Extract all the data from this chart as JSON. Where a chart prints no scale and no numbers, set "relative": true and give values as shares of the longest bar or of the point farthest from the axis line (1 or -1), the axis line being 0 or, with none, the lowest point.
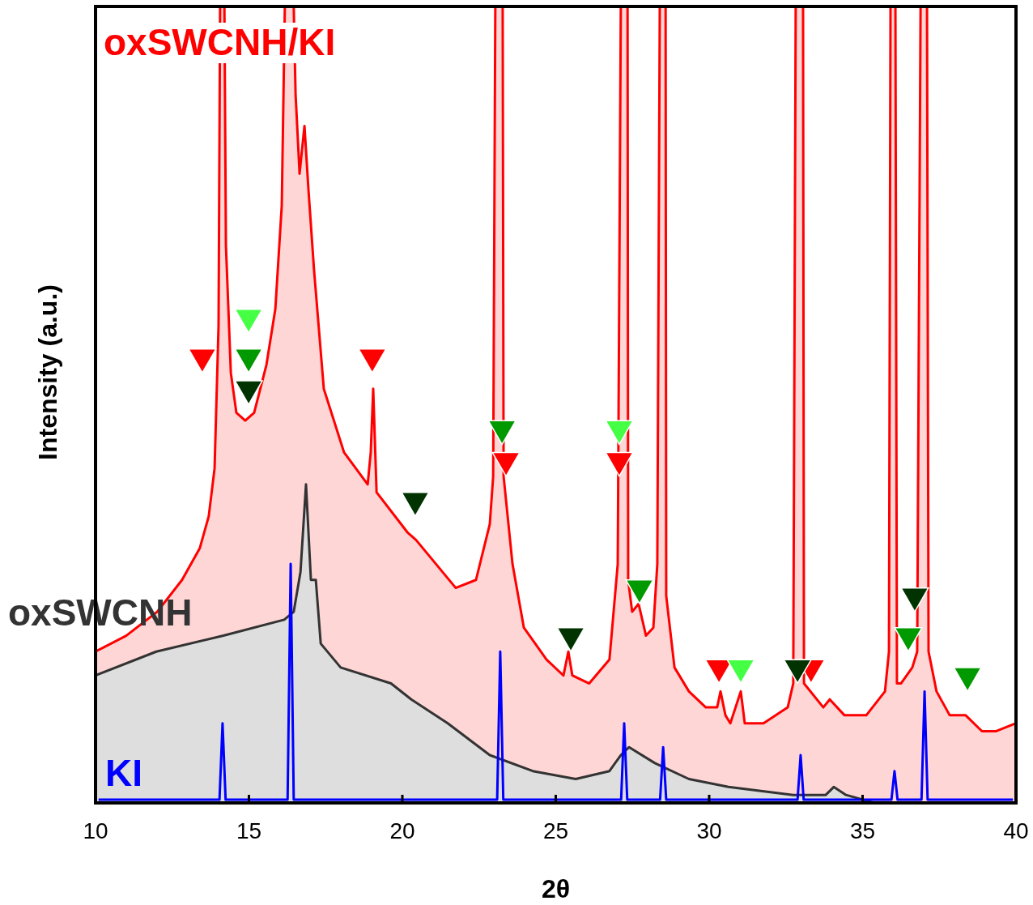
{
  "chart_data": {
    "type": "line",
    "xlabel": "2θ",
    "ylabel": "Intensity (a.u.)",
    "relative": true,
    "xlim": [
      10,
      40
    ],
    "xticks": [
      10,
      15,
      20,
      25,
      30,
      35,
      40
    ],
    "grid": false,
    "series": [
      {
        "name": "oxSWCNH/KI",
        "type": "area",
        "color": "#ff0000",
        "x": [
          10.0,
          11.0,
          12.01,
          12.82,
          13.4,
          13.69,
          13.88,
          14.01,
          14.06,
          14.2,
          14.25,
          14.41,
          14.59,
          14.88,
          15.17,
          15.57,
          15.86,
          16.07,
          16.17,
          16.46,
          16.52,
          16.65,
          16.81,
          16.94,
          17.12,
          17.44,
          18.1,
          18.87,
          18.97,
          19.05,
          19.16,
          20.16,
          20.45,
          21.74,
          22.4,
          22.85,
          22.96,
          23.03,
          23.27,
          23.3,
          23.59,
          23.96,
          24.7,
          25.25,
          25.41,
          25.54,
          26.09,
          26.75,
          27.02,
          27.12,
          27.34,
          27.36,
          27.49,
          27.7,
          27.94,
          28.18,
          28.31,
          28.39,
          28.58,
          28.6,
          28.87,
          29.34,
          29.89,
          30.26,
          30.37,
          30.53,
          30.69,
          31.03,
          31.16,
          31.77,
          32.56,
          32.74,
          32.82,
          33.06,
          33.09,
          33.72,
          33.93,
          34.41,
          35.12,
          35.73,
          35.86,
          35.91,
          36.07,
          36.12,
          36.25,
          36.62,
          36.78,
          36.89,
          37.1,
          37.15,
          37.41,
          37.84,
          38.36,
          38.89,
          39.34,
          40.0
        ],
        "values": [
          0.19,
          0.21,
          0.24,
          0.28,
          0.32,
          0.36,
          0.42,
          0.6,
          1,
          1,
          0.7,
          0.54,
          0.49,
          0.48,
          0.49,
          0.55,
          0.62,
          0.75,
          1,
          1,
          0.89,
          0.79,
          0.85,
          0.77,
          0.67,
          0.52,
          0.44,
          0.4,
          0.44,
          0.52,
          0.39,
          0.34,
          0.33,
          0.27,
          0.28,
          0.35,
          0.41,
          1,
          1,
          0.41,
          0.3,
          0.22,
          0.18,
          0.16,
          0.19,
          0.16,
          0.15,
          0.18,
          0.3,
          1,
          1,
          0.28,
          0.24,
          0.25,
          0.21,
          0.22,
          0.3,
          1,
          1,
          0.26,
          0.17,
          0.14,
          0.12,
          0.12,
          0.14,
          0.11,
          0.1,
          0.14,
          0.1,
          0.1,
          0.12,
          0.15,
          1,
          1,
          0.15,
          0.12,
          0.13,
          0.11,
          0.11,
          0.14,
          0.19,
          1,
          1,
          0.15,
          0.15,
          0.17,
          0.19,
          1,
          1,
          0.19,
          0.14,
          0.11,
          0.11,
          0.09,
          0.09,
          0.1
        ]
      },
      {
        "name": "oxSWCNH",
        "type": "area",
        "color": "#333333",
        "x": [
          10.0,
          11.98,
          14.17,
          16.15,
          16.46,
          16.68,
          16.86,
          17.02,
          17.18,
          17.34,
          17.99,
          19.63,
          20.29,
          21.48,
          22.85,
          24.25,
          25.65,
          26.75,
          27.12,
          27.39,
          28.23,
          29.34,
          30.63,
          32.74,
          33.8,
          34.06,
          34.46,
          35.38,
          40.0
        ],
        "values": [
          0.16,
          0.19,
          0.21,
          0.23,
          0.24,
          0.29,
          0.4,
          0.28,
          0.28,
          0.2,
          0.17,
          0.15,
          0.13,
          0.1,
          0.06,
          0.04,
          0.03,
          0.04,
          0.06,
          0.07,
          0.05,
          0.03,
          0.02,
          0.01,
          0.01,
          0.02,
          0.01,
          0.0,
          0.0
        ]
      },
      {
        "name": "KI",
        "type": "line",
        "color": "#0000ff",
        "x": [
          10.1,
          14.04,
          14.14,
          14.24,
          16.26,
          16.36,
          16.46,
          23.09,
          23.19,
          23.29,
          27.13,
          27.23,
          27.33,
          28.4,
          28.5,
          28.6,
          32.88,
          32.98,
          33.08,
          35.94,
          36.04,
          36.14,
          36.92,
          37.02,
          37.12,
          39.9
        ],
        "values": [
          0.004,
          0.004,
          0.1,
          0.004,
          0.004,
          0.3,
          0.004,
          0.004,
          0.19,
          0.004,
          0.004,
          0.1,
          0.004,
          0.004,
          0.07,
          0.004,
          0.004,
          0.06,
          0.004,
          0.004,
          0.04,
          0.004,
          0.004,
          0.14,
          0.004,
          0.004
        ]
      },
      {
        "type": "scatter",
        "marker": "triangle",
        "color": "#ff0000",
        "x": [
          13.48,
          19.02,
          23.38,
          27.07,
          30.32,
          33.32
        ],
        "values": [
          0.56,
          0.56,
          0.43,
          0.43,
          0.17,
          0.17
        ]
      },
      {
        "type": "scatter",
        "marker": "triangle",
        "color": "#44ff44",
        "x": [
          14.99,
          27.07,
          31.03
        ],
        "values": [
          0.61,
          0.47,
          0.17
        ]
      },
      {
        "type": "scatter",
        "marker": "triangle",
        "color": "#009900",
        "x": [
          14.99,
          23.25,
          27.73,
          36.49,
          38.42
        ],
        "values": [
          0.56,
          0.47,
          0.27,
          0.21,
          0.16
        ]
      },
      {
        "type": "scatter",
        "marker": "triangle",
        "color": "#003300",
        "x": [
          14.99,
          20.42,
          25.49,
          32.88,
          36.7
        ],
        "values": [
          0.52,
          0.38,
          0.21,
          0.17,
          0.26
        ]
      }
    ]
  }
}
